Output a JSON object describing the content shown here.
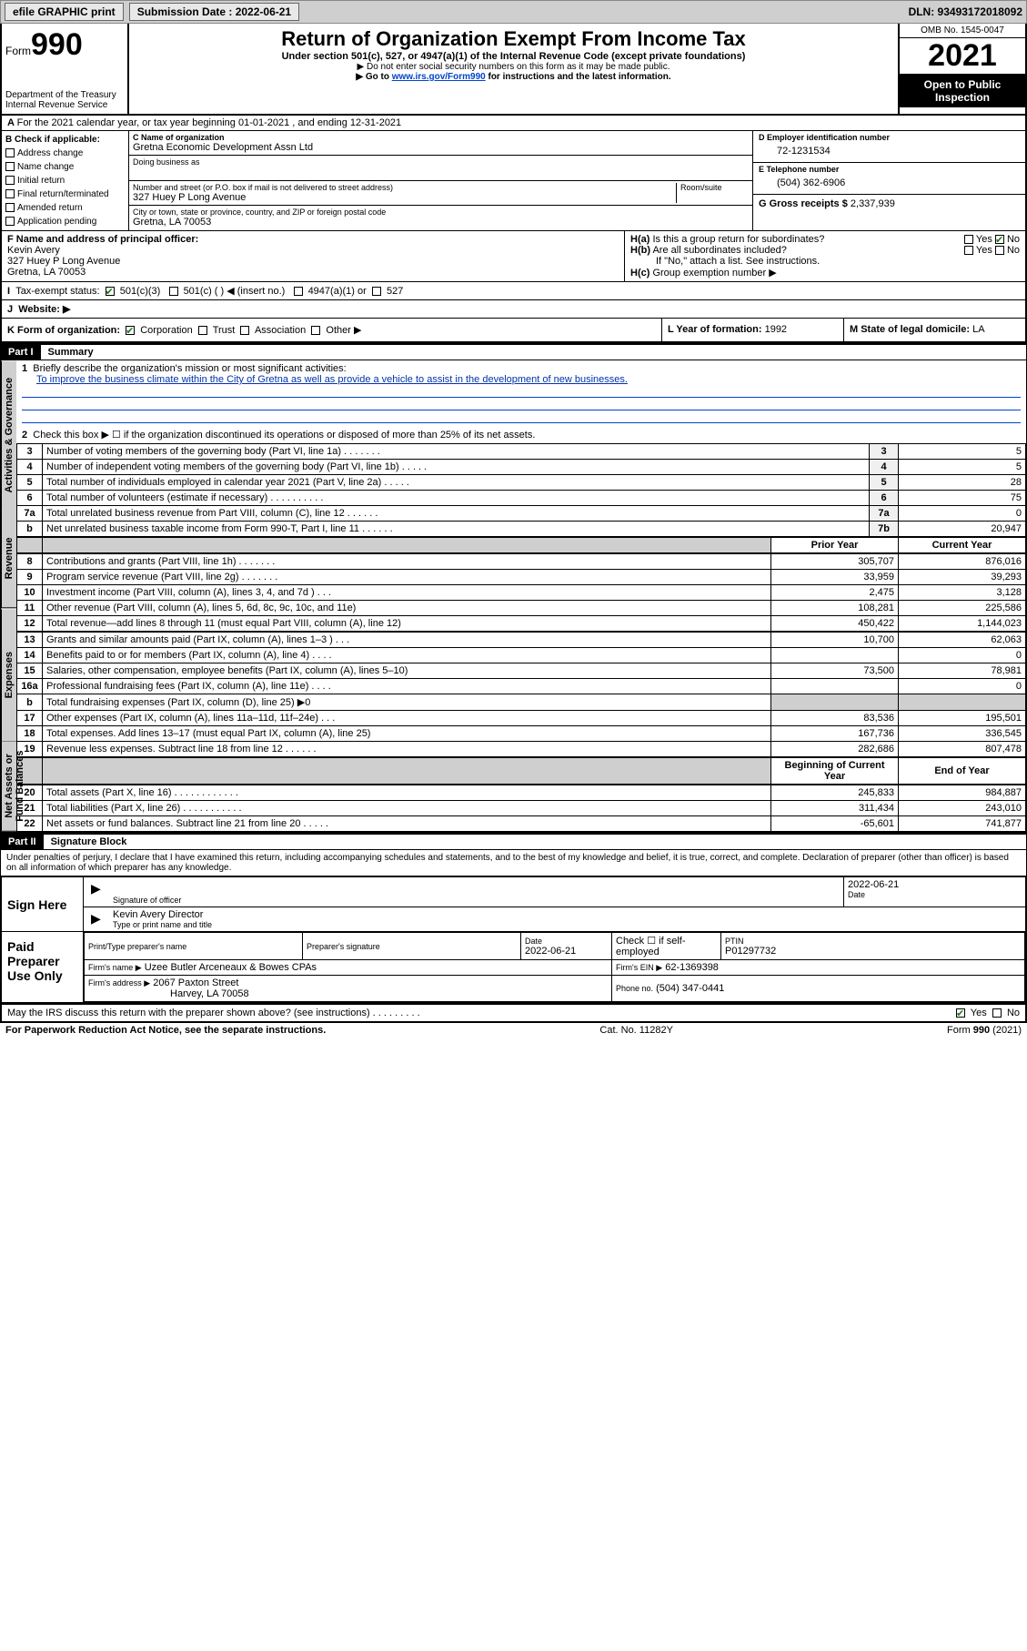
{
  "topbar": {
    "efile": "efile GRAPHIC print",
    "submission_label": "Submission Date : 2022-06-21",
    "dln": "DLN: 93493172018092"
  },
  "header": {
    "form_prefix": "Form",
    "form_number": "990",
    "dept": "Department of the Treasury",
    "irs": "Internal Revenue Service",
    "title": "Return of Organization Exempt From Income Tax",
    "sub": "Under section 501(c), 527, or 4947(a)(1) of the Internal Revenue Code (except private foundations)",
    "note1": "▶ Do not enter social security numbers on this form as it may be made public.",
    "note2_pre": "▶ Go to ",
    "note2_link": "www.irs.gov/Form990",
    "note2_post": " for instructions and the latest information.",
    "omb": "OMB No. 1545-0047",
    "year": "2021",
    "inspection": "Open to Public Inspection"
  },
  "period": {
    "line": "For the 2021 calendar year, or tax year beginning 01-01-2021   , and ending 12-31-2021"
  },
  "boxB": {
    "label": "B Check if applicable:",
    "addr_change": "Address change",
    "name_change": "Name change",
    "initial": "Initial return",
    "final": "Final return/terminated",
    "amended": "Amended return",
    "app_pending": "Application pending"
  },
  "boxC": {
    "name_label": "C Name of organization",
    "name": "Gretna Economic Development Assn Ltd",
    "dba_label": "Doing business as",
    "street_label": "Number and street (or P.O. box if mail is not delivered to street address)",
    "room_label": "Room/suite",
    "street": "327 Huey P Long Avenue",
    "city_label": "City or town, state or province, country, and ZIP or foreign postal code",
    "city": "Gretna, LA   70053"
  },
  "boxD": {
    "label": "D Employer identification number",
    "value": "72-1231534"
  },
  "boxE": {
    "label": "E Telephone number",
    "value": "(504) 362-6906"
  },
  "boxG": {
    "label": "G Gross receipts $",
    "value": "2,337,939"
  },
  "boxF": {
    "label": "F Name and address of principal officer:",
    "name": "Kevin Avery",
    "street": "327 Huey P Long Avenue",
    "city": "Gretna, LA   70053"
  },
  "boxH": {
    "ha": "Is this a group return for subordinates?",
    "hb": "Are all subordinates included?",
    "ifno": "If \"No,\" attach a list. See instructions.",
    "hc": "Group exemption number ▶",
    "ha_yes": "Yes",
    "ha_no": "No",
    "hb_yes": "Yes",
    "hb_no": "No"
  },
  "boxI": {
    "label": "Tax-exempt status:",
    "c3": "501(c)(3)",
    "c_other": "501(c) (  ) ◀ (insert no.)",
    "c4947": "4947(a)(1) or",
    "c527": "527"
  },
  "boxJ": {
    "label": "Website: ▶"
  },
  "boxK": {
    "label": "K Form of organization:",
    "corp": "Corporation",
    "trust": "Trust",
    "assoc": "Association",
    "other": "Other ▶"
  },
  "boxL": {
    "label": "L Year of formation:",
    "value": "1992"
  },
  "boxM": {
    "label": "M State of legal domicile:",
    "value": "LA"
  },
  "part1": {
    "header": "Part I",
    "title": "Summary",
    "line1_label": "Briefly describe the organization's mission or most significant activities:",
    "line1_text": "To improve the business climate within the City of Gretna as well as provide a vehicle to assist in the development of new businesses.",
    "line2": "Check this box ▶ ☐ if the organization discontinued its operations or disposed of more than 25% of its net assets.",
    "activities_label": "Activities & Governance",
    "revenue_label": "Revenue",
    "expenses_label": "Expenses",
    "netassets_label": "Net Assets or Fund Balances",
    "prior_year": "Prior Year",
    "current_year": "Current Year",
    "boy": "Beginning of Current Year",
    "eoy": "End of Year",
    "rows_ag": [
      {
        "n": "3",
        "desc": "Number of voting members of the governing body (Part VI, line 1a)   .    .    .    .    .    .    .",
        "ref": "3",
        "val": "5"
      },
      {
        "n": "4",
        "desc": "Number of independent voting members of the governing body (Part VI, line 1b)   .    .    .    .    .",
        "ref": "4",
        "val": "5"
      },
      {
        "n": "5",
        "desc": "Total number of individuals employed in calendar year 2021 (Part V, line 2a)   .    .    .    .    .",
        "ref": "5",
        "val": "28"
      },
      {
        "n": "6",
        "desc": "Total number of volunteers (estimate if necessary)   .    .    .    .    .    .    .    .    .    .",
        "ref": "6",
        "val": "75"
      },
      {
        "n": "7a",
        "desc": "Total unrelated business revenue from Part VIII, column (C), line 12   .    .    .    .    .    .",
        "ref": "7a",
        "val": "0"
      },
      {
        "n": "b",
        "desc": "Net unrelated business taxable income from Form 990-T, Part I, line 11   .    .    .    .    .    .",
        "ref": "7b",
        "val": "20,947"
      }
    ],
    "rows_rev": [
      {
        "n": "8",
        "desc": "Contributions and grants (Part VIII, line 1h)   .    .    .    .    .    .    .",
        "py": "305,707",
        "cy": "876,016"
      },
      {
        "n": "9",
        "desc": "Program service revenue (Part VIII, line 2g)   .    .    .    .    .    .    .",
        "py": "33,959",
        "cy": "39,293"
      },
      {
        "n": "10",
        "desc": "Investment income (Part VIII, column (A), lines 3, 4, and 7d )   .    .    .",
        "py": "2,475",
        "cy": "3,128"
      },
      {
        "n": "11",
        "desc": "Other revenue (Part VIII, column (A), lines 5, 6d, 8c, 9c, 10c, and 11e)",
        "py": "108,281",
        "cy": "225,586"
      },
      {
        "n": "12",
        "desc": "Total revenue—add lines 8 through 11 (must equal Part VIII, column (A), line 12)",
        "py": "450,422",
        "cy": "1,144,023"
      }
    ],
    "rows_exp": [
      {
        "n": "13",
        "desc": "Grants and similar amounts paid (Part IX, column (A), lines 1–3 )   .    .    .",
        "py": "10,700",
        "cy": "62,063"
      },
      {
        "n": "14",
        "desc": "Benefits paid to or for members (Part IX, column (A), line 4)   .    .    .    .",
        "py": "",
        "cy": "0"
      },
      {
        "n": "15",
        "desc": "Salaries, other compensation, employee benefits (Part IX, column (A), lines 5–10)",
        "py": "73,500",
        "cy": "78,981"
      },
      {
        "n": "16a",
        "desc": "Professional fundraising fees (Part IX, column (A), line 11e)   .    .    .    .",
        "py": "",
        "cy": "0"
      },
      {
        "n": "b",
        "desc": "Total fundraising expenses (Part IX, column (D), line 25) ▶0",
        "py": "SHADE",
        "cy": "SHADE"
      },
      {
        "n": "17",
        "desc": "Other expenses (Part IX, column (A), lines 11a–11d, 11f–24e)   .    .    .",
        "py": "83,536",
        "cy": "195,501"
      },
      {
        "n": "18",
        "desc": "Total expenses. Add lines 13–17 (must equal Part IX, column (A), line 25)",
        "py": "167,736",
        "cy": "336,545"
      },
      {
        "n": "19",
        "desc": "Revenue less expenses. Subtract line 18 from line 12   .    .    .    .    .    .",
        "py": "282,686",
        "cy": "807,478"
      }
    ],
    "rows_na": [
      {
        "n": "20",
        "desc": "Total assets (Part X, line 16)   .    .    .    .    .    .    .    .    .    .    .    .",
        "py": "245,833",
        "cy": "984,887"
      },
      {
        "n": "21",
        "desc": "Total liabilities (Part X, line 26)   .    .    .    .    .    .    .    .    .    .    .",
        "py": "311,434",
        "cy": "243,010"
      },
      {
        "n": "22",
        "desc": "Net assets or fund balances. Subtract line 21 from line 20   .    .    .    .    .",
        "py": "-65,601",
        "cy": "741,877"
      }
    ]
  },
  "part2": {
    "header": "Part II",
    "title": "Signature Block",
    "decl": "Under penalties of perjury, I declare that I have examined this return, including accompanying schedules and statements, and to the best of my knowledge and belief, it is true, correct, and complete. Declaration of preparer (other than officer) is based on all information of which preparer has any knowledge.",
    "sign_here": "Sign Here",
    "sig_officer": "Signature of officer",
    "date": "Date",
    "sig_date": "2022-06-21",
    "officer_name": "Kevin Avery  Director",
    "type_name": "Type or print name and title",
    "paid": "Paid Preparer Use Only",
    "prep_name_label": "Print/Type preparer's name",
    "prep_sig_label": "Preparer's signature",
    "prep_date_label": "Date",
    "prep_date": "2022-06-21",
    "check_self": "Check ☐ if self-employed",
    "ptin_label": "PTIN",
    "ptin": "P01297732",
    "firm_name_label": "Firm's name   ▶",
    "firm_name": "Uzee Butler Arceneaux & Bowes CPAs",
    "firm_ein_label": "Firm's EIN ▶",
    "firm_ein": "62-1369398",
    "firm_addr_label": "Firm's address ▶",
    "firm_addr1": "2067 Paxton Street",
    "firm_addr2": "Harvey, LA   70058",
    "phone_label": "Phone no.",
    "phone": "(504) 347-0441",
    "discuss": "May the IRS discuss this return with the preparer shown above? (see instructions)   .    .    .    .    .    .    .    .    .",
    "discuss_yes": "Yes",
    "discuss_no": "No"
  },
  "footer": {
    "pra": "For Paperwork Reduction Act Notice, see the separate instructions.",
    "cat": "Cat. No. 11282Y",
    "form": "Form 990 (2021)"
  }
}
